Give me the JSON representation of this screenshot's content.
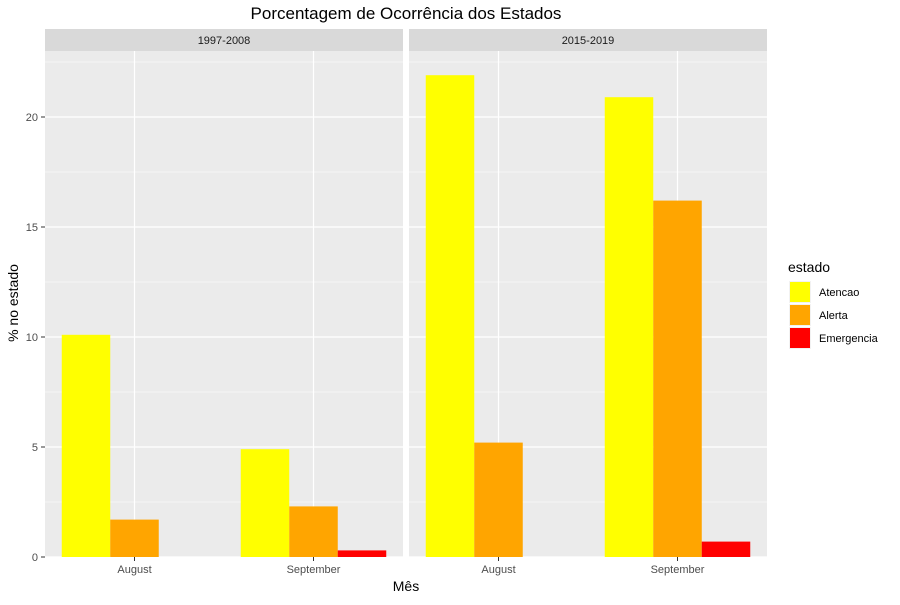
{
  "chart_data": {
    "type": "bar",
    "title": "Porcentagem de Ocorrência dos Estados",
    "xlabel": "Mês",
    "ylabel": "% no estado",
    "ylim": [
      0,
      23
    ],
    "yticks": [
      0,
      5,
      10,
      15,
      20
    ],
    "grid": true,
    "legend_position": "right",
    "legend_title": "estado",
    "categories": [
      "August",
      "September"
    ],
    "series_names": [
      "Atencao",
      "Alerta",
      "Emergencia"
    ],
    "colors": {
      "Atencao": "#ffff00",
      "Alerta": "#ffa500",
      "Emergencia": "#ff0000"
    },
    "panels": [
      {
        "label": "1997-2008",
        "series": [
          {
            "name": "Atencao",
            "values": [
              10.1,
              4.9
            ]
          },
          {
            "name": "Alerta",
            "values": [
              1.7,
              2.3
            ]
          },
          {
            "name": "Emergencia",
            "values": [
              0,
              0.3
            ]
          }
        ]
      },
      {
        "label": "2015-2019",
        "series": [
          {
            "name": "Atencao",
            "values": [
              21.9,
              20.9
            ]
          },
          {
            "name": "Alerta",
            "values": [
              5.2,
              16.2
            ]
          },
          {
            "name": "Emergencia",
            "values": [
              0,
              0.7
            ]
          }
        ]
      }
    ]
  }
}
